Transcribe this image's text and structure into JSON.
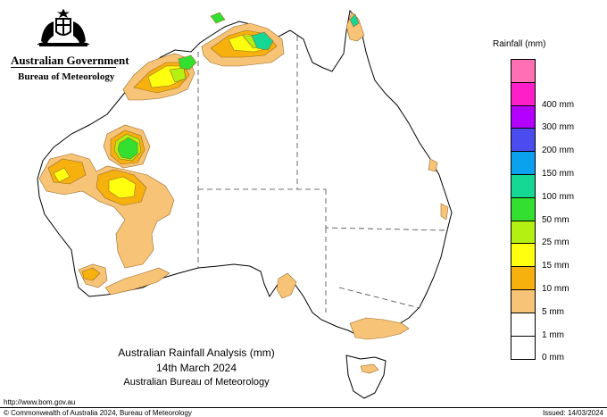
{
  "header": {
    "government": "Australian Government",
    "bureau": "Bureau of Meteorology"
  },
  "legend": {
    "title": "Rainfall (mm)",
    "classes": [
      {
        "label": "",
        "color": "#ff6fb4"
      },
      {
        "label": "400 mm",
        "color": "#ff1fc8"
      },
      {
        "label": "300 mm",
        "color": "#b400ff"
      },
      {
        "label": "200 mm",
        "color": "#4a4cf0"
      },
      {
        "label": "150 mm",
        "color": "#0aa2ef"
      },
      {
        "label": "100 mm",
        "color": "#16d895"
      },
      {
        "label": "50 mm",
        "color": "#33e02f"
      },
      {
        "label": "25 mm",
        "color": "#b4f012"
      },
      {
        "label": "15 mm",
        "color": "#ffff10"
      },
      {
        "label": "10 mm",
        "color": "#f6b10f"
      },
      {
        "label": "5 mm",
        "color": "#f7c377"
      },
      {
        "label": "1 mm",
        "color": "#ffffff"
      },
      {
        "label": "0 mm",
        "color": "#ffffff"
      }
    ]
  },
  "caption": {
    "title": "Australian Rainfall Analysis (mm)",
    "date": "14th March 2024",
    "agency": "Australian Bureau of Meteorology"
  },
  "footer": {
    "url": "http://www.bom.gov.au",
    "copyright": "© Commonwealth of Australia 2024, Bureau of Meteorology",
    "issued": "Issued: 14/03/2024"
  },
  "colors": {
    "light_orange": "#f7c377",
    "orange": "#f6b10f",
    "yellow": "#ffff10",
    "lime": "#b4f012",
    "green": "#33e02f",
    "teal": "#16d895"
  }
}
